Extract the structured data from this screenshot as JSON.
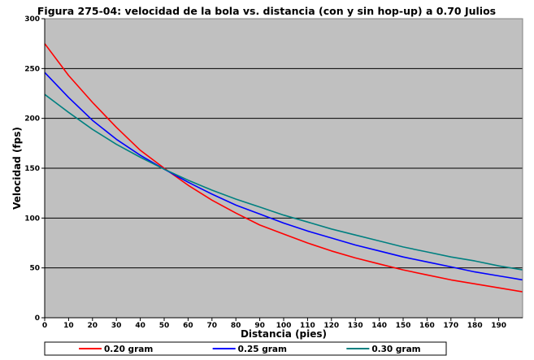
{
  "chart_data": {
    "type": "line",
    "title": "Figura 275-04: velocidad de la bola vs. distancia (con y sin hop-up) a 0.70 Julios",
    "xlabel": "Distancia (pies)",
    "ylabel": "Velocidad (fps)",
    "xlim": [
      0,
      200
    ],
    "ylim": [
      0,
      300
    ],
    "x_ticks": [
      0,
      10,
      20,
      30,
      40,
      50,
      60,
      70,
      80,
      90,
      100,
      110,
      120,
      130,
      140,
      150,
      160,
      170,
      180,
      190
    ],
    "y_ticks": [
      0,
      50,
      100,
      150,
      200,
      250,
      300
    ],
    "grid": "horizontal",
    "plot_background": "#c0c0c0",
    "legend_position": "bottom",
    "x": [
      0,
      10,
      20,
      30,
      40,
      50,
      60,
      70,
      80,
      90,
      100,
      110,
      120,
      130,
      140,
      150,
      160,
      170,
      180,
      190,
      200
    ],
    "series": [
      {
        "name": "0.20 gram",
        "color": "#ff0000",
        "values": [
          275,
          243,
          216,
          191,
          168,
          150,
          133,
          118,
          105,
          93,
          84,
          75,
          67,
          60,
          54,
          48,
          43,
          38,
          34,
          30,
          26
        ]
      },
      {
        "name": "0.25 gram",
        "color": "#0000ff",
        "values": [
          246,
          221,
          198,
          179,
          163,
          149,
          136,
          124,
          113,
          104,
          95,
          87,
          80,
          73,
          67,
          61,
          56,
          51,
          46,
          42,
          38
        ]
      },
      {
        "name": "0.30 gram",
        "color": "#008080",
        "values": [
          224,
          206,
          189,
          174,
          161,
          149,
          138,
          128,
          119,
          111,
          103,
          96,
          89,
          83,
          77,
          71,
          66,
          61,
          57,
          52,
          48
        ]
      }
    ]
  }
}
